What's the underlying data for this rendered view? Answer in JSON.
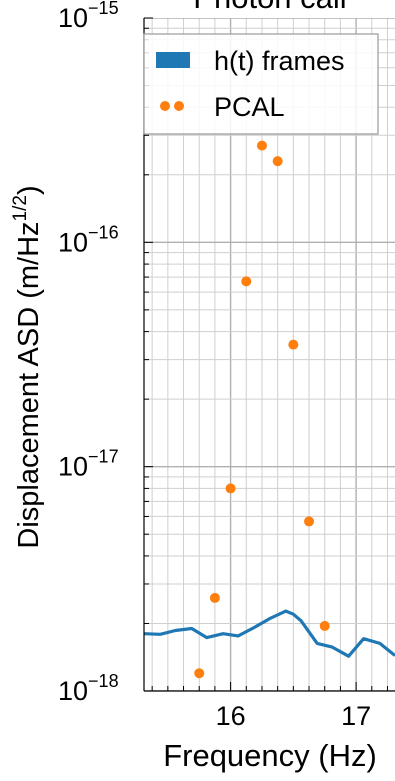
{
  "chart_data": {
    "type": "scatter",
    "title": "Photon cali",
    "xlabel": "Frequency (Hz)",
    "ylabel": "Displacement ASD (m/Hz",
    "ylabel_sup": "1/2",
    "ylabel_close": ")",
    "x_scale": "linear",
    "y_scale": "log",
    "xlim": [
      15.31,
      17.31
    ],
    "ylim": [
      1e-18,
      1e-15
    ],
    "x_ticks": [
      {
        "value": 16,
        "label": "16"
      },
      {
        "value": 17,
        "label": "17"
      }
    ],
    "y_ticks": [
      {
        "value": 1e-18,
        "base": "10",
        "exp": "−18"
      },
      {
        "value": 1e-17,
        "base": "10",
        "exp": "−17"
      },
      {
        "value": 1e-16,
        "base": "10",
        "exp": "−16"
      },
      {
        "value": 1e-15,
        "base": "10",
        "exp": "−15"
      }
    ],
    "grid": true,
    "legend_position": "top-left",
    "series": [
      {
        "name": "h(t) frames",
        "kind": "line",
        "color": "#1f77b4",
        "x": [
          15.31,
          15.44,
          15.56,
          15.69,
          15.81,
          15.94,
          16.06,
          16.19,
          16.31,
          16.44,
          16.5,
          16.56,
          16.69,
          16.81,
          16.94,
          17.06,
          17.19,
          17.31
        ],
        "y": [
          1.8e-18,
          1.79e-18,
          1.86e-18,
          1.9e-18,
          1.73e-18,
          1.8e-18,
          1.76e-18,
          1.92e-18,
          2.1e-18,
          2.27e-18,
          2.2e-18,
          2.06e-18,
          1.63e-18,
          1.57e-18,
          1.43e-18,
          1.71e-18,
          1.63e-18,
          1.44e-18
        ]
      },
      {
        "name": "PCAL",
        "kind": "scatter",
        "color": "#ff7f0e",
        "x": [
          15.75,
          15.875,
          16.0,
          16.125,
          16.25,
          16.375,
          16.5,
          16.625,
          16.75
        ],
        "y": [
          1.2e-18,
          2.6e-18,
          8e-18,
          6.7e-17,
          2.7e-16,
          2.3e-16,
          3.5e-17,
          5.7e-18,
          1.95e-18
        ]
      }
    ]
  }
}
